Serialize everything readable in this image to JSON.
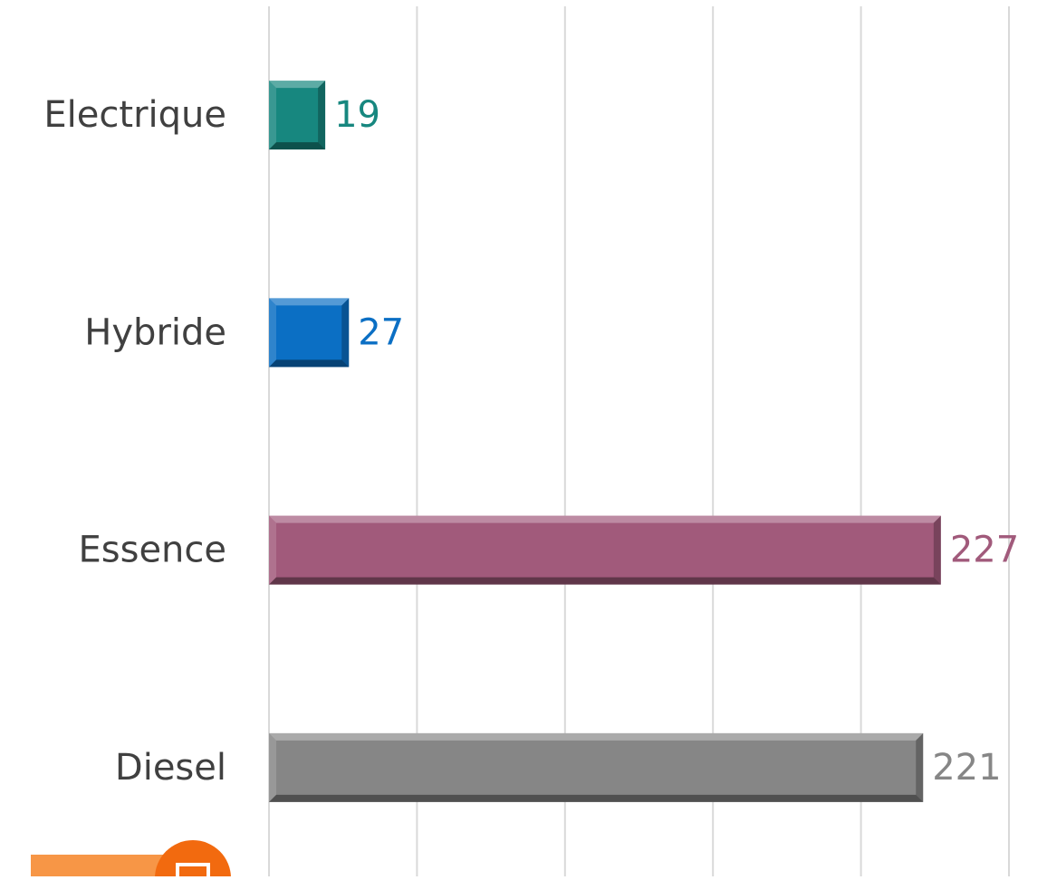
{
  "chart_data": {
    "type": "bar",
    "orientation": "horizontal",
    "categories": [
      "Electrique",
      "Hybride",
      "Essence",
      "Diesel"
    ],
    "values": [
      19,
      27,
      227,
      221
    ],
    "colors": [
      "#17877f",
      "#0b6fc4",
      "#a15a7b",
      "#868686"
    ],
    "xlim": [
      0,
      250
    ],
    "xticks": [
      0,
      50,
      100,
      150,
      200,
      250
    ],
    "grid": true
  }
}
